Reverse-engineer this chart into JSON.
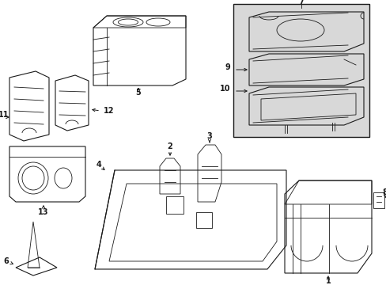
{
  "bg_color": "#ffffff",
  "line_color": "#1a1a1a",
  "box_fill": "#e8e8e8",
  "fig_width": 4.89,
  "fig_height": 3.6,
  "dpi": 100
}
